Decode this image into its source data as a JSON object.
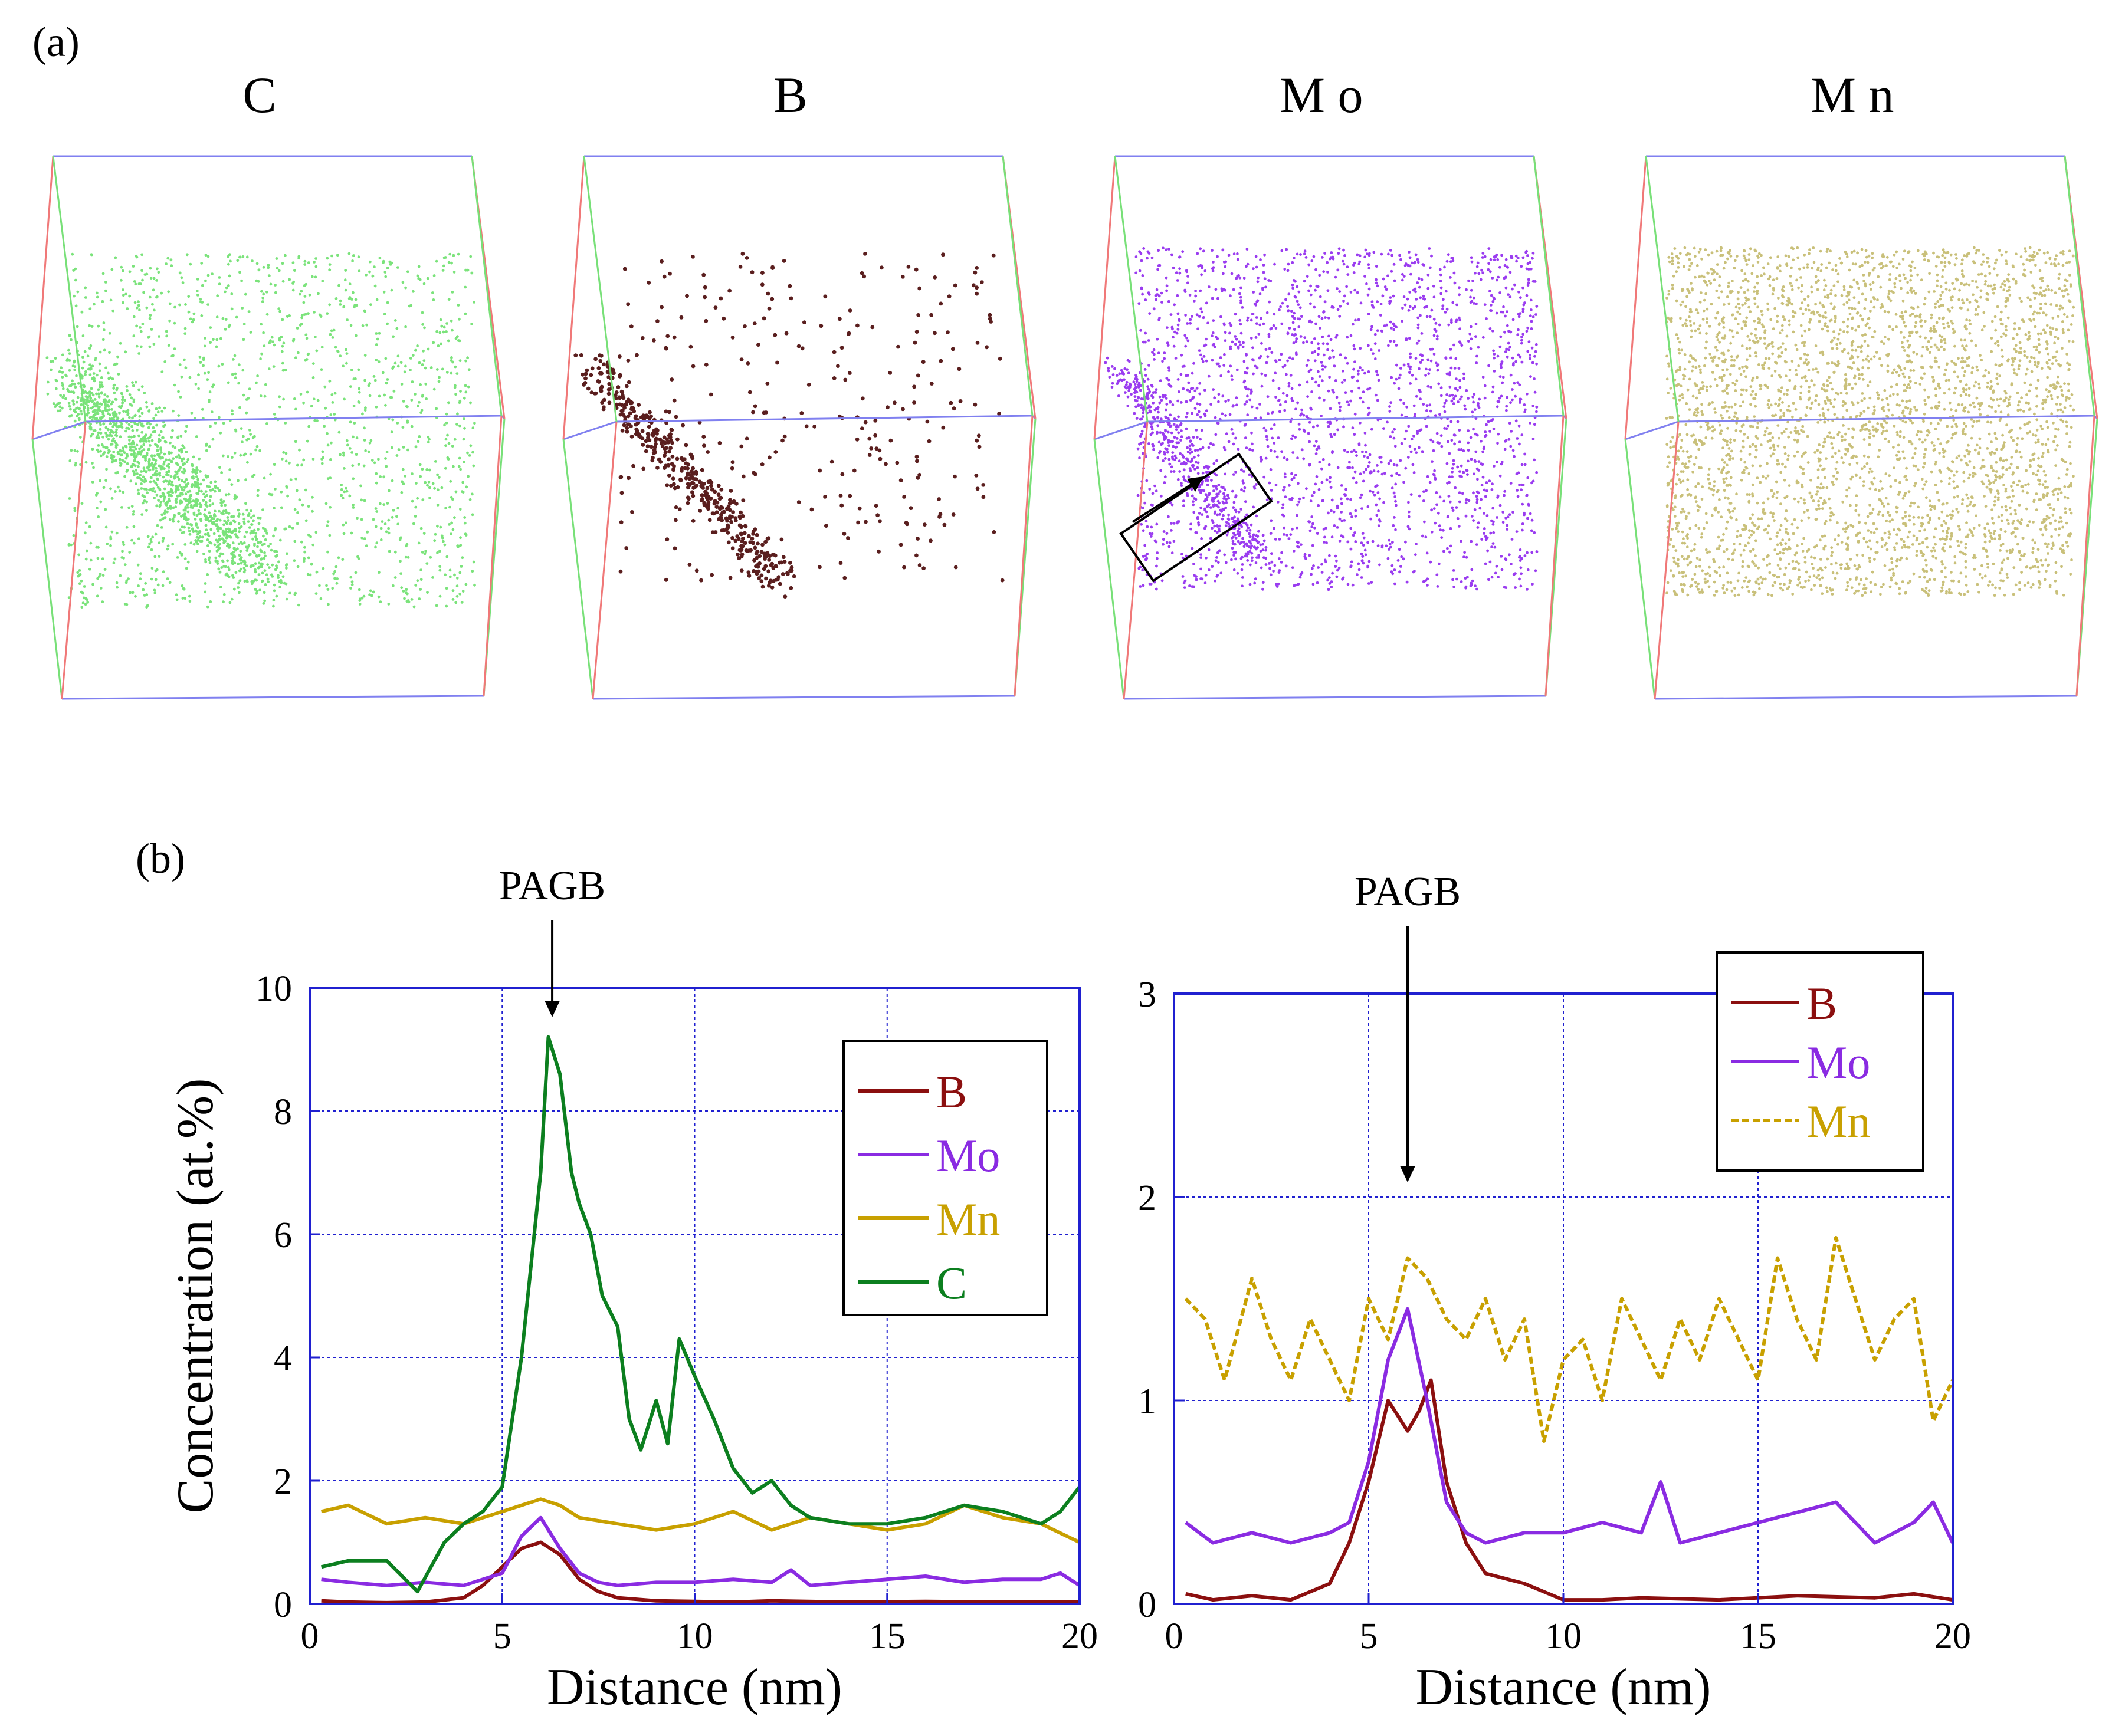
{
  "panel_a": {
    "label": "(a)",
    "maps": [
      {
        "element": "C",
        "title": "C",
        "color": "#7be37b"
      },
      {
        "element": "B",
        "title": "B",
        "color": "#5a1e1e"
      },
      {
        "element": "Mo",
        "title": "M o",
        "color": "#9a3cf0"
      },
      {
        "element": "Mn",
        "title": "M n",
        "color": "#c9c07a"
      }
    ],
    "box_edge_colors": {
      "x": "#8080f0",
      "y": "#f07878",
      "z": "#78e078"
    }
  },
  "panel_b": {
    "label": "(b)"
  },
  "chart_data": [
    {
      "type": "line",
      "title": "",
      "annotation": "PAGB",
      "annotation_x": 6.3,
      "xlabel": "Distance (nm)",
      "ylabel": "Concentration (at.%)",
      "xlim": [
        0,
        20
      ],
      "ylim": [
        0,
        10
      ],
      "xticks": [
        0,
        5,
        10,
        15,
        20
      ],
      "yticks": [
        0,
        2,
        4,
        6,
        8,
        10
      ],
      "grid": true,
      "legend": "top-right",
      "series": [
        {
          "name": "B",
          "color": "#8b0f0f",
          "dash": "",
          "x": [
            0.3,
            1,
            2,
            3,
            4,
            4.5,
            5,
            5.5,
            6,
            6.5,
            7,
            7.5,
            8,
            9,
            10,
            11,
            12,
            14,
            16,
            18,
            20
          ],
          "y": [
            0.05,
            0.03,
            0.02,
            0.03,
            0.1,
            0.3,
            0.6,
            0.9,
            1.0,
            0.8,
            0.4,
            0.2,
            0.1,
            0.05,
            0.04,
            0.03,
            0.05,
            0.03,
            0.04,
            0.03,
            0.03
          ]
        },
        {
          "name": "Mo",
          "color": "#8a2be2",
          "dash": "",
          "x": [
            0.3,
            1,
            2,
            3,
            4,
            5,
            5.5,
            6,
            6.5,
            7,
            7.5,
            8,
            9,
            10,
            11,
            12,
            12.5,
            13,
            14,
            15,
            16,
            17,
            18,
            19,
            19.5,
            20
          ],
          "y": [
            0.4,
            0.35,
            0.3,
            0.35,
            0.3,
            0.5,
            1.1,
            1.4,
            0.9,
            0.5,
            0.35,
            0.3,
            0.35,
            0.35,
            0.4,
            0.35,
            0.55,
            0.3,
            0.35,
            0.4,
            0.45,
            0.35,
            0.4,
            0.4,
            0.5,
            0.3
          ]
        },
        {
          "name": "Mn",
          "color": "#c8a000",
          "dash": "",
          "x": [
            0.3,
            1,
            2,
            3,
            4,
            5,
            6,
            6.5,
            7,
            8,
            9,
            10,
            11,
            12,
            13,
            14,
            15,
            16,
            17,
            18,
            19,
            20
          ],
          "y": [
            1.5,
            1.6,
            1.3,
            1.4,
            1.3,
            1.5,
            1.7,
            1.6,
            1.4,
            1.3,
            1.2,
            1.3,
            1.5,
            1.2,
            1.4,
            1.3,
            1.2,
            1.3,
            1.6,
            1.4,
            1.3,
            1.0
          ]
        },
        {
          "name": "C",
          "color": "#0c7f1f",
          "dash": "",
          "x": [
            0.3,
            1,
            2,
            2.8,
            3.5,
            4,
            4.5,
            5,
            5.5,
            6,
            6.2,
            6.5,
            6.8,
            7,
            7.3,
            7.6,
            8,
            8.3,
            8.6,
            9,
            9.3,
            9.6,
            10,
            10.5,
            11,
            11.5,
            12,
            12.5,
            13,
            14,
            15,
            16,
            17,
            18,
            19,
            19.5,
            20
          ],
          "y": [
            0.6,
            0.7,
            0.7,
            0.2,
            1.0,
            1.3,
            1.5,
            1.9,
            4.0,
            7.0,
            9.2,
            8.6,
            7.0,
            6.5,
            6.0,
            5.0,
            4.5,
            3.0,
            2.5,
            3.3,
            2.6,
            4.3,
            3.7,
            3.0,
            2.2,
            1.8,
            2.0,
            1.6,
            1.4,
            1.3,
            1.3,
            1.4,
            1.6,
            1.5,
            1.3,
            1.5,
            1.9
          ]
        }
      ]
    },
    {
      "type": "line",
      "title": "",
      "annotation": "PAGB",
      "annotation_x": 6.0,
      "xlabel": "Distance (nm)",
      "ylabel": "",
      "xlim": [
        0,
        20
      ],
      "ylim": [
        0,
        3
      ],
      "xticks": [
        0,
        5,
        10,
        15,
        20
      ],
      "yticks": [
        0,
        1,
        2,
        3
      ],
      "grid": true,
      "legend": "top-right",
      "series": [
        {
          "name": "B",
          "color": "#8b0f0f",
          "dash": "",
          "x": [
            0.3,
            1,
            2,
            3,
            4,
            4.5,
            5,
            5.5,
            6,
            6.3,
            6.6,
            7,
            7.5,
            8,
            9,
            10,
            11,
            12,
            14,
            16,
            18,
            19,
            20
          ],
          "y": [
            0.05,
            0.02,
            0.04,
            0.02,
            0.1,
            0.3,
            0.6,
            1.0,
            0.85,
            0.95,
            1.1,
            0.6,
            0.3,
            0.15,
            0.1,
            0.02,
            0.02,
            0.03,
            0.02,
            0.04,
            0.03,
            0.05,
            0.02
          ]
        },
        {
          "name": "Mo",
          "color": "#8a2be2",
          "dash": "",
          "x": [
            0.3,
            1,
            2,
            3,
            4,
            4.5,
            5,
            5.5,
            6,
            6.5,
            7,
            7.5,
            8,
            9,
            10,
            11,
            12,
            12.5,
            13,
            14,
            15,
            16,
            17,
            18,
            19,
            19.5,
            20
          ],
          "y": [
            0.4,
            0.3,
            0.35,
            0.3,
            0.35,
            0.4,
            0.7,
            1.2,
            1.45,
            1.0,
            0.5,
            0.35,
            0.3,
            0.35,
            0.35,
            0.4,
            0.35,
            0.6,
            0.3,
            0.35,
            0.4,
            0.45,
            0.5,
            0.3,
            0.4,
            0.5,
            0.3
          ]
        },
        {
          "name": "Mn",
          "color": "#c8a000",
          "dash": "12,6",
          "x": [
            0.3,
            0.8,
            1.3,
            2,
            2.5,
            3,
            3.5,
            4,
            4.5,
            5,
            5.5,
            6,
            6.5,
            7,
            7.5,
            8,
            8.5,
            9,
            9.5,
            10,
            10.5,
            11,
            11.5,
            12,
            12.5,
            13,
            13.5,
            14,
            14.5,
            15,
            15.5,
            16,
            16.5,
            17,
            17.5,
            18,
            18.5,
            19,
            19.5,
            20
          ],
          "y": [
            1.5,
            1.4,
            1.1,
            1.6,
            1.3,
            1.1,
            1.4,
            1.2,
            1.0,
            1.5,
            1.3,
            1.7,
            1.6,
            1.4,
            1.3,
            1.5,
            1.2,
            1.4,
            0.8,
            1.2,
            1.3,
            1.0,
            1.5,
            1.3,
            1.1,
            1.4,
            1.2,
            1.5,
            1.3,
            1.1,
            1.7,
            1.4,
            1.2,
            1.8,
            1.5,
            1.2,
            1.4,
            1.5,
            0.9,
            1.1
          ]
        }
      ]
    }
  ]
}
